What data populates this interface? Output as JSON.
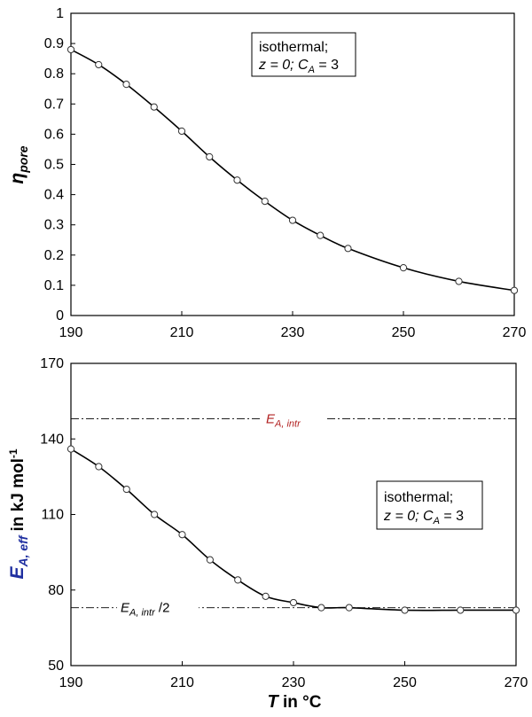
{
  "chart_data": [
    {
      "type": "line",
      "title": "",
      "xlabel": "",
      "ylabel_symbol": "η",
      "ylabel_subscript": "pore",
      "xlim": [
        190,
        270
      ],
      "ylim": [
        0,
        1
      ],
      "x_ticks": [
        190,
        210,
        230,
        250,
        270
      ],
      "x_tick_labels": [
        "190",
        "210",
        "230",
        "250",
        "270"
      ],
      "y_ticks": [
        0,
        0.1,
        0.2,
        0.3,
        0.4,
        0.5,
        0.6,
        0.7,
        0.8,
        0.9,
        1
      ],
      "y_tick_labels": [
        "0",
        "0.1",
        "0.2",
        "0.3",
        "0.4",
        "0.5",
        "0.6",
        "0.7",
        "0.8",
        "0.9",
        "1"
      ],
      "annotation": {
        "line1": "isothermal;",
        "line2_a": "z = 0; C",
        "line2_sub": "A",
        "line2_b": " = 3"
      },
      "x": [
        190,
        195,
        200,
        205,
        210,
        215,
        220,
        225,
        230,
        235,
        240,
        250,
        260,
        270
      ],
      "y": [
        0.88,
        0.83,
        0.765,
        0.69,
        0.61,
        0.525,
        0.448,
        0.378,
        0.315,
        0.265,
        0.222,
        0.158,
        0.113,
        0.083
      ]
    },
    {
      "type": "line",
      "title": "",
      "xlabel_symbol": "T",
      "xlabel_rest": " in °C",
      "ylabel_symbol": "E",
      "ylabel_subscript": "A, eff",
      "ylabel_rest": " in kJ mol",
      "ylabel_superscript": "-1",
      "xlim": [
        190,
        270
      ],
      "ylim": [
        50,
        170
      ],
      "x_ticks": [
        190,
        210,
        230,
        250,
        270
      ],
      "x_tick_labels": [
        "190",
        "210",
        "230",
        "250",
        "270"
      ],
      "y_ticks": [
        50,
        80,
        110,
        140,
        170
      ],
      "y_tick_labels": [
        "50",
        "80",
        "110",
        "140",
        "170"
      ],
      "annotation": {
        "line1": "isothermal;",
        "line2_a": "z = 0; C",
        "line2_sub": "A",
        "line2_b": " = 3"
      },
      "reference_lines": [
        {
          "value": 148,
          "label_main": "E",
          "label_sub": "A, intr",
          "label_suffix": "",
          "color": "#b22222"
        },
        {
          "value": 73,
          "label_main": "E",
          "label_sub": "A, intr",
          "label_suffix": " /2",
          "color": "#000000"
        }
      ],
      "x": [
        190,
        195,
        200,
        205,
        210,
        215,
        220,
        225,
        230,
        235,
        240,
        250,
        260,
        270
      ],
      "y": [
        136,
        129,
        120,
        110,
        102,
        92,
        84,
        77.5,
        75,
        73,
        73,
        72,
        72,
        72
      ]
    }
  ],
  "colors": {
    "ylabel_accent": "#1f2fa0",
    "intr_label": "#b22222"
  }
}
